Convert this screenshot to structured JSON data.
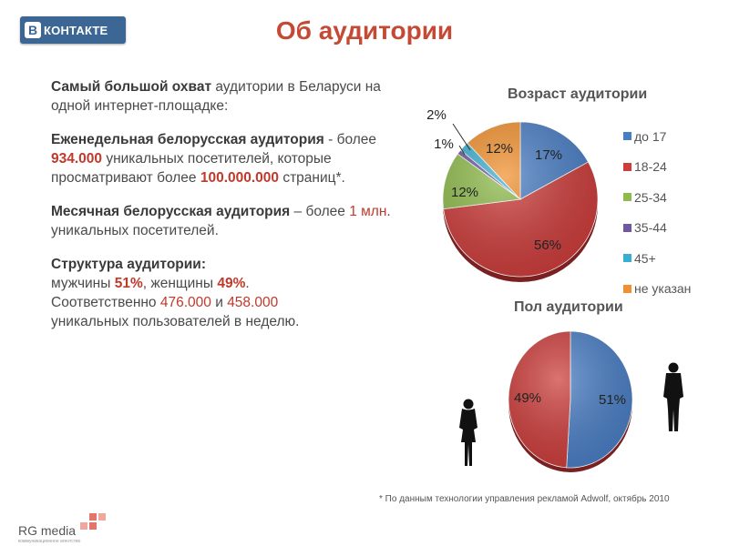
{
  "header": {
    "logo_mark": "B",
    "logo_text": "КОНТАКТЕ",
    "title": "Об аудитории"
  },
  "text": {
    "p1": {
      "bold": "Самый большой охват",
      "rest": " аудитории в Беларуси на одной интернет-площадке:"
    },
    "p2": {
      "bold": "Еженедельная белорусская аудитория",
      "t1": " - более ",
      "n1": "934.000",
      "t2": " уникальных посетителей, которые просматривают более ",
      "n2": "100.000.000",
      "t3": " страниц*."
    },
    "p3": {
      "bold": "Месячная белорусская аудитория",
      "t1": " – более ",
      "n1": "1 млн",
      "t2": ". уникальных посетителей."
    },
    "p4": {
      "bold": "Структура аудитории:",
      "t1": "мужчины ",
      "n1": "51%",
      "t2": ", женщины ",
      "n2": "49%",
      "t3": ".",
      "t4": "Соответственно ",
      "n3": "476.000",
      "t5": " и ",
      "n4": "458.000",
      "t6": "уникальных пользователей в неделю."
    }
  },
  "footnote": "* По данным технологии управления рекламой Adwolf, октябрь 2010",
  "footer": {
    "logo_text": "RG media",
    "tagline": "коммуникационное агентство"
  },
  "chart_data": [
    {
      "type": "pie",
      "title": "Возраст аудитории",
      "legend": "right",
      "categories": [
        "до 17",
        "18-24",
        "25-34",
        "35-44",
        "45+",
        "не указан"
      ],
      "values": [
        17,
        56,
        12,
        1,
        2,
        12
      ],
      "labels": [
        "17%",
        "56%",
        "12%",
        "1%",
        "2%",
        "12%"
      ],
      "colors": [
        "#4a7ec4",
        "#cc3d3b",
        "#8fbb4c",
        "#7058a0",
        "#3aaed0",
        "#f0902e"
      ]
    },
    {
      "type": "pie",
      "title": "Пол аудитории",
      "categories": [
        "мужчины",
        "женщины"
      ],
      "values": [
        51,
        49
      ],
      "labels": [
        "51%",
        "49%"
      ],
      "colors": [
        "#4a7ec4",
        "#cc3d3b"
      ]
    }
  ]
}
